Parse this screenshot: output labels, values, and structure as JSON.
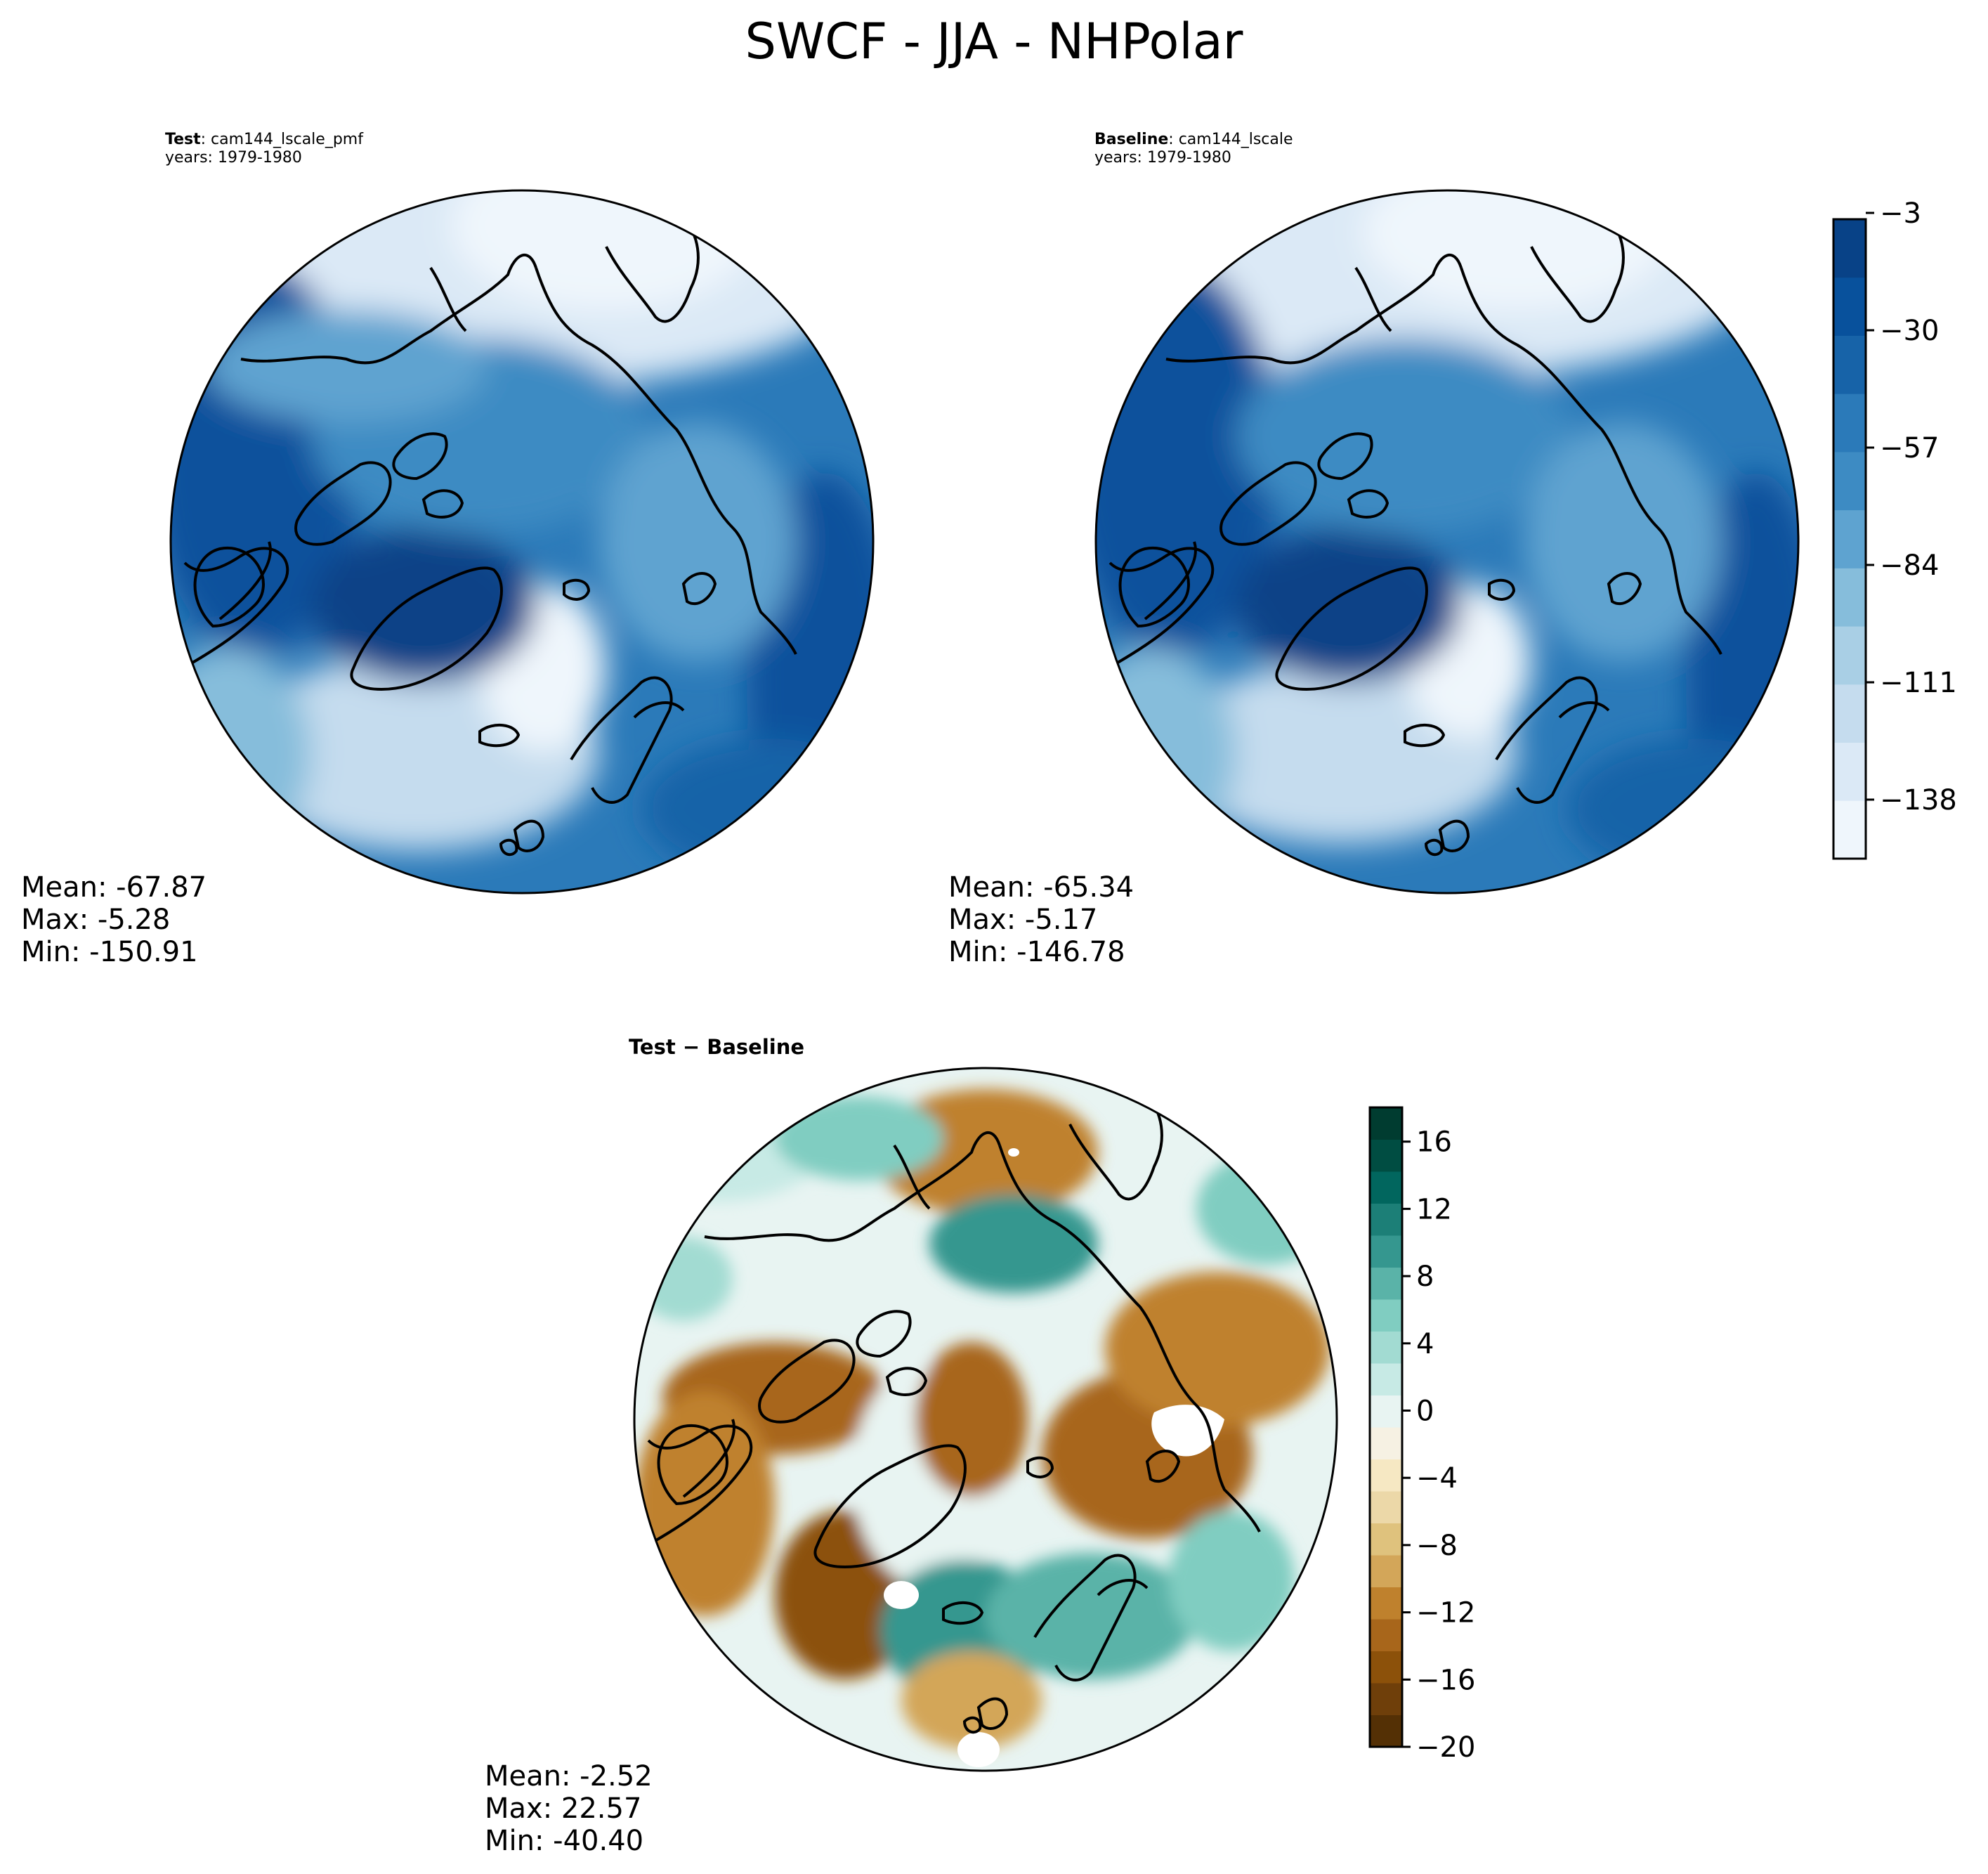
{
  "figure": {
    "title": "SWCF - JJA - NHPolar"
  },
  "panels": {
    "test": {
      "label": "Test",
      "case": "cam144_lscale_pmf",
      "years": "years: 1979-1980",
      "mean": "Mean: -67.87",
      "max": "Max: -5.28",
      "min": "Min: -150.91"
    },
    "baseline": {
      "label": "Baseline",
      "case": "cam144_lscale",
      "years": "years: 1979-1980",
      "mean": "Mean: -65.34",
      "max": "Max: -5.17",
      "min": "Min: -146.78"
    },
    "diff": {
      "title": "Test − Baseline",
      "mean": "Mean: -2.52",
      "max": "Max: 22.57",
      "min": "Min: -40.40"
    }
  },
  "colorbars": {
    "main": {
      "colors": [
        "#eff6fc",
        "#dbe9f6",
        "#c5dcee",
        "#a9cfe5",
        "#86bddb",
        "#5ea3d0",
        "#3d8bc3",
        "#2b7ab9",
        "#1763a8",
        "#08519c",
        "#084287"
      ],
      "ticks": [
        "−138",
        "−111",
        "−84",
        "−57",
        "−30",
        "−3"
      ]
    },
    "diff": {
      "colors": [
        "#543005",
        "#6f3f0a",
        "#8c510a",
        "#a8661b",
        "#bf812d",
        "#d3a659",
        "#dfc27d",
        "#ecd8a8",
        "#f6e8c3",
        "#f6f1e3",
        "#e8f4f2",
        "#c7eae5",
        "#a2dbd2",
        "#80cdc1",
        "#5ab3a8",
        "#35978f",
        "#1c7f77",
        "#01665e",
        "#004d42",
        "#003c30"
      ],
      "ticks": [
        "−20",
        "−16",
        "−12",
        "−8",
        "−4",
        "0",
        "4",
        "8",
        "12",
        "16"
      ]
    }
  },
  "fields": {
    "main_cmap": "Blues_r",
    "diff_cmap": "BrBG"
  }
}
